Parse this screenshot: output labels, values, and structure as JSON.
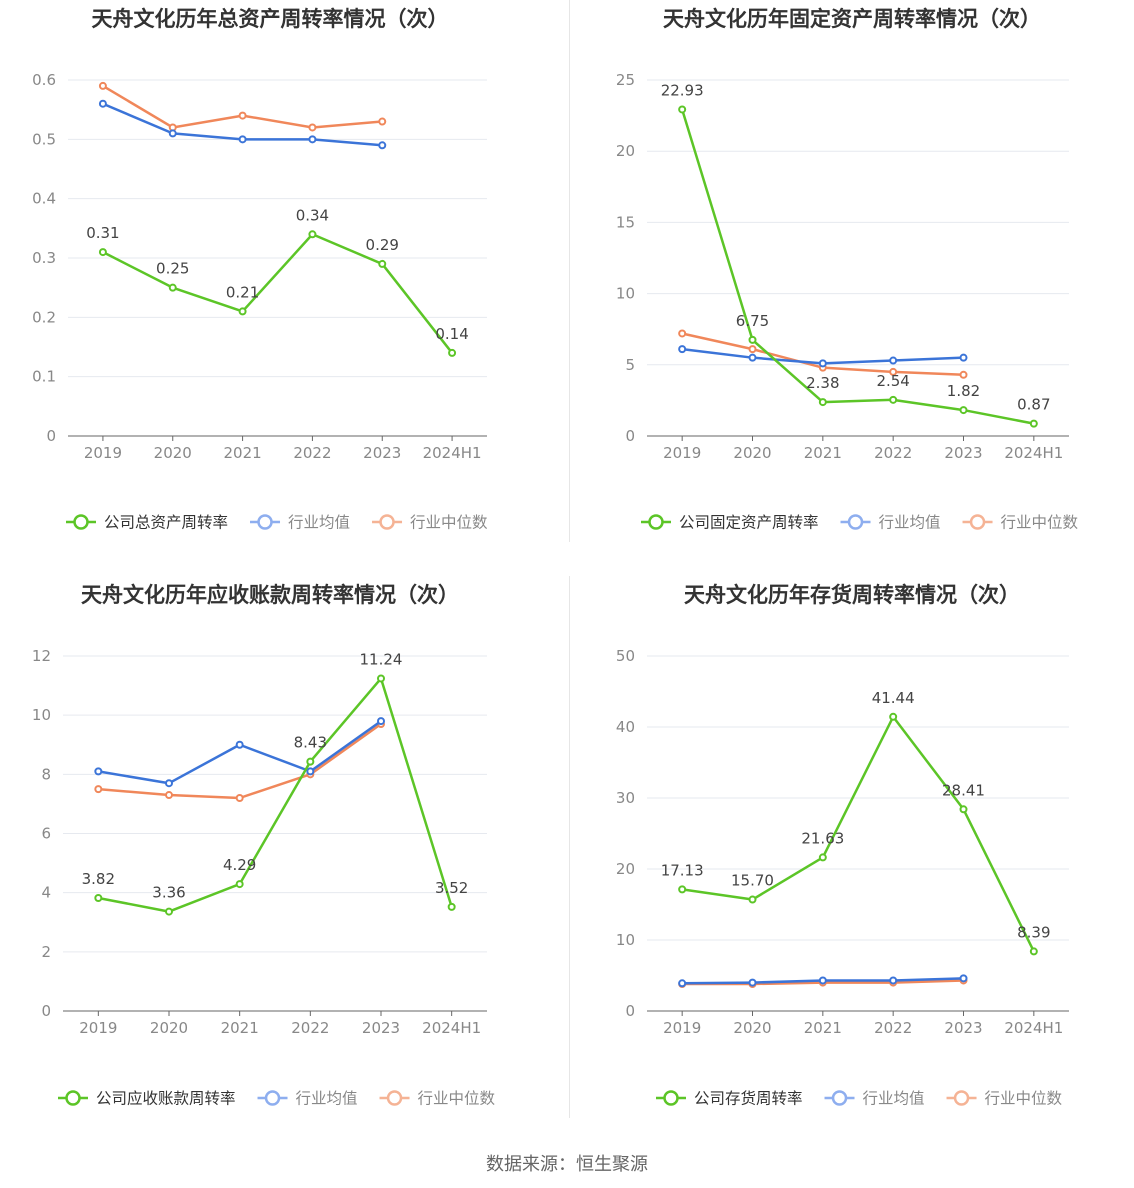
{
  "colors": {
    "company": "#5cc527",
    "avg": "#3b74d8",
    "median": "#f0875a",
    "grid": "#e6e9ef",
    "axis": "#666666",
    "tick": "#888888",
    "title": "#333333"
  },
  "source_text": "数据来源：恒生聚源",
  "chart_data": [
    {
      "type": "line",
      "title": "天舟文化历年总资产周转率情况（次）",
      "categories": [
        "2019",
        "2020",
        "2021",
        "2022",
        "2023",
        "2024H1"
      ],
      "ylim": [
        0,
        0.6
      ],
      "yticks": [
        0,
        0.1,
        0.2,
        0.3,
        0.4,
        0.5,
        0.6
      ],
      "ytick_labels": [
        "0",
        "0.1",
        "0.2",
        "0.3",
        "0.4",
        "0.5",
        "0.6"
      ],
      "grid": true,
      "legend": "bottom",
      "series": [
        {
          "name": "公司总资产周转率",
          "values": [
            0.31,
            0.25,
            0.21,
            0.34,
            0.29,
            0.14
          ],
          "labels": [
            "0.31",
            "0.25",
            "0.21",
            "0.34",
            "0.29",
            "0.14"
          ]
        },
        {
          "name": "行业均值",
          "values": [
            0.56,
            0.51,
            0.5,
            0.5,
            0.49,
            null
          ]
        },
        {
          "name": "行业中位数",
          "values": [
            0.59,
            0.52,
            0.54,
            0.52,
            0.53,
            null
          ]
        }
      ]
    },
    {
      "type": "line",
      "title": "天舟文化历年固定资产周转率情况（次）",
      "categories": [
        "2019",
        "2020",
        "2021",
        "2022",
        "2023",
        "2024H1"
      ],
      "ylim": [
        0,
        25
      ],
      "yticks": [
        0,
        5,
        10,
        15,
        20,
        25
      ],
      "ytick_labels": [
        "0",
        "5",
        "10",
        "15",
        "20",
        "25"
      ],
      "grid": true,
      "legend": "bottom",
      "series": [
        {
          "name": "公司固定资产周转率",
          "values": [
            22.93,
            6.75,
            2.38,
            2.54,
            1.82,
            0.87
          ],
          "labels": [
            "22.93",
            "6.75",
            "2.38",
            "2.54",
            "1.82",
            "0.87"
          ]
        },
        {
          "name": "行业均值",
          "values": [
            6.1,
            5.5,
            5.1,
            5.3,
            5.5,
            null
          ]
        },
        {
          "name": "行业中位数",
          "values": [
            7.2,
            6.1,
            4.8,
            4.5,
            4.3,
            null
          ]
        }
      ]
    },
    {
      "type": "line",
      "title": "天舟文化历年应收账款周转率情况（次）",
      "categories": [
        "2019",
        "2020",
        "2021",
        "2022",
        "2023",
        "2024H1"
      ],
      "ylim": [
        0,
        12
      ],
      "yticks": [
        0,
        2,
        4,
        6,
        8,
        10,
        12
      ],
      "ytick_labels": [
        "0",
        "2",
        "4",
        "6",
        "8",
        "10",
        "12"
      ],
      "grid": true,
      "legend": "bottom",
      "series": [
        {
          "name": "公司应收账款周转率",
          "values": [
            3.82,
            3.36,
            4.29,
            8.43,
            11.24,
            3.52
          ],
          "labels": [
            "3.82",
            "3.36",
            "4.29",
            "8.43",
            "11.24",
            "3.52"
          ]
        },
        {
          "name": "行业均值",
          "values": [
            8.1,
            7.7,
            9.0,
            8.1,
            9.8,
            null
          ]
        },
        {
          "name": "行业中位数",
          "values": [
            7.5,
            7.3,
            7.2,
            8.0,
            9.7,
            null
          ]
        }
      ]
    },
    {
      "type": "line",
      "title": "天舟文化历年存货周转率情况（次）",
      "categories": [
        "2019",
        "2020",
        "2021",
        "2022",
        "2023",
        "2024H1"
      ],
      "ylim": [
        0,
        50
      ],
      "yticks": [
        0,
        10,
        20,
        30,
        40,
        50
      ],
      "ytick_labels": [
        "0",
        "10",
        "20",
        "30",
        "40",
        "50"
      ],
      "grid": true,
      "legend": "bottom",
      "series": [
        {
          "name": "公司存货周转率",
          "values": [
            17.13,
            15.7,
            21.63,
            41.44,
            28.41,
            8.39
          ],
          "labels": [
            "17.13",
            "15.70",
            "21.63",
            "41.44",
            "28.41",
            "8.39"
          ]
        },
        {
          "name": "行业均值",
          "values": [
            3.9,
            4.0,
            4.3,
            4.3,
            4.6,
            null
          ]
        },
        {
          "name": "行业中位数",
          "values": [
            3.8,
            3.8,
            4.0,
            4.0,
            4.3,
            null
          ]
        }
      ]
    }
  ]
}
